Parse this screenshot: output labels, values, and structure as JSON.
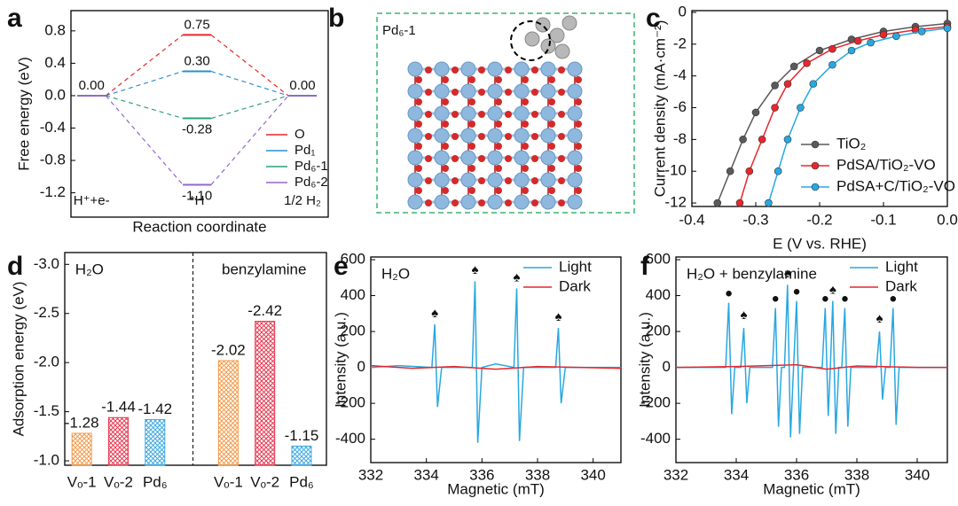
{
  "chart_data": [
    {
      "type": "energy",
      "panel": "a",
      "ylabel": "Free energy (eV)",
      "xlabel": "Reaction coordinate",
      "categories": [
        "H⁺+e-",
        "*H",
        "1/2 H₂"
      ],
      "ylim": [
        -1.5,
        1.05
      ],
      "yticks": [
        0.8,
        0.4,
        {
          "value": 0,
          "label": "0.0"
        },
        -0.4,
        -0.8,
        -1.2
      ],
      "series": [
        {
          "name": "O",
          "color": "#e8262b",
          "values": [
            0,
            0.75,
            0
          ],
          "value_labels": [
            null,
            "0.75",
            null
          ]
        },
        {
          "name": "Pd₁",
          "color": "#2a8fd0",
          "values": [
            0,
            0.3,
            0
          ],
          "value_labels": [
            "0.00",
            "0.30",
            "0.00"
          ]
        },
        {
          "name": "Pd₆-1",
          "color": "#2ca07a",
          "values": [
            0,
            -0.28,
            0
          ],
          "value_labels": [
            null,
            "-0.28",
            null
          ]
        },
        {
          "name": "Pd₆-2",
          "color": "#9467cd",
          "values": [
            0,
            -1.1,
            0
          ],
          "value_labels": [
            null,
            "-1.10",
            null
          ]
        }
      ],
      "legend": "lower right"
    },
    {
      "type": "structure",
      "panel": "b",
      "title": "Pd₆-1"
    },
    {
      "type": "line",
      "panel": "c",
      "ylabel": "Current density (mA·cm⁻²)",
      "xlabel": "E (V vs. RHE)",
      "xlim": [
        -0.4,
        0.0
      ],
      "xticks": [
        -0.4,
        -0.3,
        -0.2,
        -0.1,
        {
          "value": 0,
          "label": "0.0"
        }
      ],
      "ylim": [
        -12.22,
        0.11
      ],
      "yticks": [
        0,
        -2,
        -4,
        -6,
        -8,
        -10,
        -12
      ],
      "markers": true,
      "legend": "lower right",
      "series": [
        {
          "name": "TiO₂",
          "color": "#5a5a5a",
          "x": [
            -0.36,
            -0.34,
            -0.32,
            -0.3,
            -0.27,
            -0.24,
            -0.2,
            -0.15,
            -0.1,
            -0.05,
            0.0
          ],
          "values": [
            -12,
            -10,
            -8,
            -6.3,
            -4.6,
            -3.4,
            -2.4,
            -1.7,
            -1.2,
            -0.9,
            -0.7
          ]
        },
        {
          "name": "PdSA/TiO₂-VO",
          "color": "#e8262b",
          "x": [
            -0.325,
            -0.31,
            -0.29,
            -0.27,
            -0.25,
            -0.22,
            -0.18,
            -0.14,
            -0.1,
            -0.05,
            0.0
          ],
          "values": [
            -12,
            -10,
            -8,
            -6,
            -4.5,
            -3.2,
            -2.3,
            -1.8,
            -1.4,
            -1.1,
            -0.9
          ]
        },
        {
          "name": "PdSA+C/TiO₂-VO",
          "color": "#29a8e0",
          "x": [
            -0.28,
            -0.265,
            -0.25,
            -0.23,
            -0.21,
            -0.18,
            -0.15,
            -0.12,
            -0.08,
            -0.04,
            0.0
          ],
          "values": [
            -12,
            -10,
            -8,
            -6,
            -4.5,
            -3.3,
            -2.4,
            -1.9,
            -1.5,
            -1.2,
            -1.0
          ]
        }
      ]
    },
    {
      "type": "bar",
      "panel": "d",
      "ylabel": "Adsorption energy (eV)",
      "ylim": [
        -0.955,
        -3.12
      ],
      "yticks": [
        {
          "value": -3,
          "label": "-3.0"
        },
        -2.5,
        {
          "value": -2,
          "label": "-2.0"
        },
        -1.5,
        {
          "value": -1,
          "label": "-1.0"
        }
      ],
      "colors": [
        "#f39a4a",
        "#e8384f",
        "#3fa9e0"
      ],
      "groups": [
        {
          "name": "H₂O",
          "categories": [
            "Vₒ-1",
            "Vₒ-2",
            "Pd₆"
          ],
          "values": [
            -1.28,
            -1.44,
            -1.42
          ]
        },
        {
          "name": "benzylamine",
          "categories": [
            "Vₒ-1",
            "Vₒ-2",
            "Pd₆"
          ],
          "values": [
            -2.02,
            -2.42,
            -1.15
          ]
        }
      ]
    },
    {
      "type": "line",
      "panel": "e",
      "title": "H₂O",
      "ylabel": "Intensity (a.u.)",
      "xlabel": "Magnetic (mT)",
      "xlim": [
        332,
        341
      ],
      "xticks": [
        332,
        334,
        336,
        338,
        340
      ],
      "ylim": [
        -530,
        615
      ],
      "yticks": [
        600,
        400,
        200,
        0,
        -200,
        -400
      ],
      "legend": "upper right",
      "series": [
        {
          "name": "Light",
          "color": "#29a8e0",
          "x": [
            332,
            333,
            334.2,
            334.3,
            334.4,
            334.55,
            335.65,
            335.75,
            335.85,
            336.0,
            336.5,
            337.15,
            337.25,
            337.35,
            337.5,
            338.65,
            338.75,
            338.85,
            339.0,
            341
          ],
          "values": [
            0,
            10,
            0,
            240,
            -220,
            0,
            0,
            480,
            -420,
            0,
            20,
            0,
            440,
            -410,
            0,
            0,
            220,
            -200,
            0,
            0
          ]
        },
        {
          "name": "Dark",
          "color": "#e8262b",
          "x": [
            332,
            333.5,
            335,
            336.5,
            338,
            339.5,
            341
          ],
          "values": [
            10,
            -5,
            5,
            -10,
            5,
            0,
            -5
          ]
        }
      ],
      "annotations": [
        {
          "text": "♠",
          "x": 334.3,
          "y": 300
        },
        {
          "text": "♠",
          "x": 335.75,
          "y": 540
        },
        {
          "text": "♠",
          "x": 337.25,
          "y": 500
        },
        {
          "text": "♠",
          "x": 338.75,
          "y": 280
        }
      ]
    },
    {
      "type": "line",
      "panel": "f",
      "title": "H₂O + benzylamine",
      "ylabel": "Intensity (a.u.)",
      "xlabel": "Magnetic (mT)",
      "xlim": [
        332,
        341
      ],
      "xticks": [
        332,
        334,
        336,
        338,
        340
      ],
      "ylim": [
        -530,
        615
      ],
      "yticks": [
        600,
        400,
        200,
        0,
        -200,
        -400
      ],
      "legend": "upper right",
      "series": [
        {
          "name": "Light",
          "color": "#29a8e0",
          "x": [
            332,
            333.65,
            333.75,
            333.85,
            333.95,
            334.15,
            334.25,
            334.35,
            334.45,
            335.2,
            335.3,
            335.4,
            335.5,
            335.6,
            335.7,
            335.8,
            335.9,
            336.0,
            336.1,
            336.2,
            336.85,
            336.95,
            337.05,
            337.12,
            337.2,
            337.3,
            337.4,
            337.5,
            337.6,
            337.7,
            337.8,
            338.65,
            338.75,
            338.85,
            338.95,
            339.1,
            339.2,
            339.3,
            339.4,
            341
          ],
          "values": [
            0,
            0,
            360,
            -260,
            0,
            0,
            220,
            -200,
            0,
            0,
            330,
            -330,
            0,
            0,
            460,
            -390,
            0,
            370,
            -370,
            0,
            0,
            330,
            -270,
            0,
            370,
            -370,
            0,
            0,
            330,
            -330,
            0,
            0,
            200,
            -180,
            0,
            0,
            330,
            -320,
            0,
            0
          ]
        },
        {
          "name": "Dark",
          "color": "#e8262b",
          "x": [
            332,
            334,
            336,
            337,
            338,
            340,
            341
          ],
          "values": [
            0,
            5,
            15,
            -10,
            8,
            0,
            0
          ]
        }
      ],
      "annotations": [
        {
          "text": "●",
          "x": 333.75,
          "y": 410
        },
        {
          "text": "♠",
          "x": 334.25,
          "y": 290
        },
        {
          "text": "●",
          "x": 335.3,
          "y": 380
        },
        {
          "text": "♠",
          "x": 335.7,
          "y": 520
        },
        {
          "text": "●",
          "x": 336.0,
          "y": 420
        },
        {
          "text": "●",
          "x": 336.95,
          "y": 380
        },
        {
          "text": "♠",
          "x": 337.2,
          "y": 430
        },
        {
          "text": "●",
          "x": 337.6,
          "y": 380
        },
        {
          "text": "♠",
          "x": 338.75,
          "y": 270
        },
        {
          "text": "●",
          "x": 339.2,
          "y": 380
        }
      ]
    }
  ]
}
